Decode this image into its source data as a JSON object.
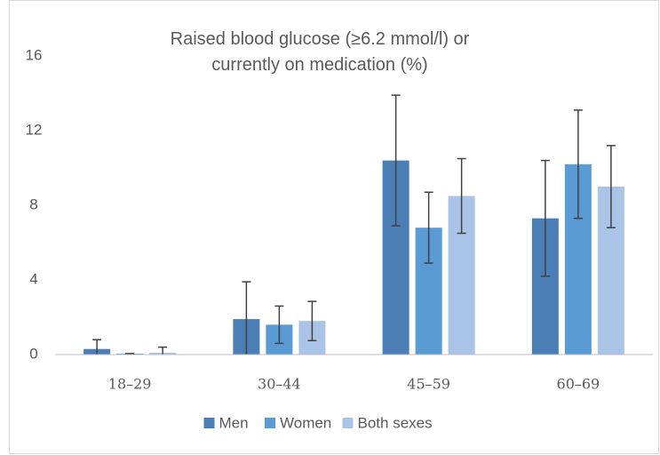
{
  "chart_data": {
    "type": "bar",
    "title": "Raised blood glucose (≥6.2 mmol/l) or currently on medication (%)",
    "categories": [
      "18–29",
      "30–44",
      "45–59",
      "60–69"
    ],
    "series": [
      {
        "name": "Men",
        "color": "#4a7eb4",
        "values": [
          0.3,
          1.9,
          10.4,
          7.3
        ],
        "errors": [
          0.5,
          2.0,
          3.5,
          3.1
        ]
      },
      {
        "name": "Women",
        "color": "#5b9bd5",
        "values": [
          0.05,
          1.6,
          6.8,
          10.2
        ],
        "errors": [
          0,
          1.0,
          1.9,
          2.9
        ]
      },
      {
        "name": "Both sexes",
        "color": "#a9c4e7",
        "values": [
          0.1,
          1.8,
          8.5,
          9.0
        ],
        "errors": [
          0.3,
          1.05,
          2.0,
          2.2
        ]
      }
    ],
    "ylim": [
      0,
      16
    ],
    "yticks": [
      0,
      4,
      8,
      12,
      16
    ],
    "grid": false
  }
}
